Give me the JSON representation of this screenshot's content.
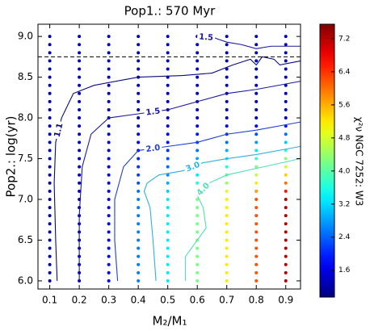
{
  "chart_data": {
    "type": "contour-scatter",
    "title": "Pop1.: 570 Myr",
    "x_label": "M₂/M₁",
    "y_label": "Pop2.: log(yr)",
    "colorbar_label": "χ²ν NGC 7252: W3",
    "xlim": [
      0.06,
      0.95
    ],
    "ylim": [
      5.9,
      9.15
    ],
    "clim": [
      0.95,
      7.55
    ],
    "xticks": [
      0.1,
      0.2,
      0.3,
      0.4,
      0.5,
      0.6,
      0.7,
      0.8,
      0.9
    ],
    "yticks": [
      {
        "value": 6,
        "label": "6.0"
      },
      6.5,
      {
        "value": 7,
        "label": "7.0"
      },
      7.5,
      {
        "value": 8,
        "label": "8.0"
      },
      8.5,
      {
        "value": 9,
        "label": "9.0"
      }
    ],
    "cticks": [
      1.6,
      2.4,
      3.2,
      {
        "value": 4,
        "label": "4.0"
      },
      4.8,
      5.6,
      6.4,
      7.2
    ],
    "colormap": "jet",
    "hline": 8.75,
    "x": [
      0.1,
      0.2,
      0.3,
      0.4,
      0.5,
      0.6,
      0.7,
      0.8,
      0.9
    ],
    "y": [
      6,
      6.1,
      6.2,
      6.3,
      6.4,
      6.5,
      6.6,
      6.7,
      6.8,
      6.9,
      7,
      7.1,
      7.2,
      7.3,
      7.4,
      7.5,
      7.6,
      7.7,
      7.8,
      7.9,
      8,
      8.1,
      8.2,
      8.3,
      8.4,
      8.5,
      8.6,
      8.7,
      8.8,
      8.9,
      9
    ],
    "z": [
      [
        1.2,
        1.3,
        1.8,
        2.6,
        3.3,
        4.2,
        5.2,
        6.2,
        7.2
      ],
      [
        1.2,
        1.3,
        1.8,
        2.6,
        3.3,
        4.2,
        5.2,
        6.2,
        7.2
      ],
      [
        1.2,
        1.3,
        1.8,
        2.6,
        3.3,
        4.2,
        5.2,
        6.2,
        7.2
      ],
      [
        1.2,
        1.3,
        1.8,
        2.6,
        3.3,
        4.2,
        5.2,
        6.2,
        7.2
      ],
      [
        1.2,
        1.3,
        1.8,
        2.6,
        3.3,
        4.2,
        5.2,
        6.2,
        7.2
      ],
      [
        1.2,
        1.3,
        1.8,
        2.6,
        3.3,
        4.2,
        5.2,
        6.2,
        7.2
      ],
      [
        1.2,
        1.3,
        1.8,
        2.6,
        3.3,
        4.2,
        5.2,
        6.2,
        7.2
      ],
      [
        1.2,
        1.3,
        1.8,
        2.6,
        3.3,
        4.2,
        5.2,
        6.2,
        7.2
      ],
      [
        1.2,
        1.3,
        1.8,
        2.6,
        3.3,
        4.2,
        5.2,
        6.2,
        7.2
      ],
      [
        1.2,
        1.3,
        1.8,
        2.6,
        3.3,
        4.2,
        5.2,
        6.2,
        7.2
      ],
      [
        1.2,
        1.3,
        1.8,
        2.6,
        3.3,
        4.2,
        5.2,
        6.2,
        7.2
      ],
      [
        1.2,
        1.3,
        1.8,
        2.5,
        3.1,
        3.9,
        4.8,
        5.7,
        6.6
      ],
      [
        1.2,
        1.3,
        1.7,
        2.3,
        2.9,
        3.6,
        4.4,
        5.2,
        6.0
      ],
      [
        1.2,
        1.3,
        1.7,
        2.2,
        2.7,
        3.3,
        4.0,
        4.7,
        5.4
      ],
      [
        1.2,
        1.3,
        1.6,
        2.1,
        2.5,
        3.0,
        3.6,
        4.2,
        4.8
      ],
      [
        1.3,
        1.3,
        1.6,
        2.0,
        2.3,
        2.8,
        3.3,
        3.8,
        4.3
      ],
      [
        1.3,
        1.3,
        1.5,
        1.8,
        2.1,
        2.5,
        2.9,
        3.3,
        3.7
      ],
      [
        1.3,
        1.3,
        1.5,
        1.7,
        1.9,
        2.2,
        2.5,
        2.8,
        3.1
      ],
      [
        1.3,
        1.3,
        1.4,
        1.6,
        1.7,
        1.9,
        2.1,
        2.3,
        2.5
      ],
      [
        1.3,
        1.3,
        1.4,
        1.4,
        1.5,
        1.6,
        1.7,
        1.8,
        1.9
      ],
      [
        1.2,
        1.3,
        1.3,
        1.3,
        1.3,
        1.3,
        1.3,
        1.3,
        1.3
      ],
      [
        1.2,
        1.3,
        1.3,
        1.3,
        1.3,
        1.3,
        1.3,
        1.3,
        1.3
      ],
      [
        1.2,
        1.3,
        1.3,
        1.3,
        1.3,
        1.3,
        1.3,
        1.3,
        1.3
      ],
      [
        1.2,
        1.3,
        1.3,
        1.3,
        1.3,
        1.3,
        1.3,
        1.3,
        1.3
      ],
      [
        1.2,
        1.3,
        1.3,
        1.3,
        1.3,
        1.3,
        1.3,
        1.3,
        1.3
      ],
      [
        1.2,
        1.3,
        1.3,
        1.3,
        1.3,
        1.3,
        1.3,
        1.3,
        1.3
      ],
      [
        1.2,
        1.3,
        1.3,
        1.3,
        1.3,
        1.3,
        1.3,
        1.3,
        1.3
      ],
      [
        1.2,
        1.3,
        1.3,
        1.3,
        1.3,
        1.3,
        1.3,
        1.3,
        1.3
      ],
      [
        1.2,
        1.3,
        1.3,
        1.3,
        1.3,
        1.3,
        1.3,
        1.3,
        1.3
      ],
      [
        1.2,
        1.3,
        1.3,
        1.3,
        1.3,
        1.3,
        1.3,
        1.3,
        1.3
      ],
      [
        1.2,
        1.3,
        1.3,
        1.3,
        1.3,
        1.3,
        1.3,
        1.3,
        1.3
      ]
    ],
    "contours": [
      {
        "level": 1.1,
        "label": "1.1",
        "color": "#0a0a80",
        "x": [
          0.125,
          0.12,
          0.115,
          0.12,
          0.14,
          0.18,
          0.25,
          0.4,
          0.55,
          0.65,
          0.72,
          0.78,
          0.8,
          0.82,
          0.86,
          0.88,
          0.95
        ],
        "y": [
          6.0,
          6.5,
          7.2,
          7.7,
          8.0,
          8.3,
          8.4,
          8.5,
          8.52,
          8.55,
          8.65,
          8.72,
          8.65,
          8.75,
          8.72,
          8.65,
          8.7
        ]
      },
      {
        "level": 1.5,
        "label": "1.5",
        "color": "#1a1aa0",
        "x": [
          0.6,
          0.66,
          0.7,
          0.75,
          0.8,
          0.85,
          0.95
        ],
        "y": [
          9.0,
          8.98,
          8.93,
          8.9,
          8.85,
          8.88,
          8.88
        ]
      },
      {
        "level": 1.5,
        "label": "1.5",
        "color": "#1a1aa0",
        "x": [
          0.2,
          0.2,
          0.21,
          0.24,
          0.3,
          0.4,
          0.5,
          0.6,
          0.7,
          0.8,
          0.95
        ],
        "y": [
          6.0,
          6.8,
          7.4,
          7.8,
          8.0,
          8.05,
          8.1,
          8.2,
          8.3,
          8.35,
          8.45
        ]
      },
      {
        "level": 2,
        "label": "2.0",
        "color": "#2040d0",
        "x": [
          0.33,
          0.32,
          0.32,
          0.35,
          0.4,
          0.5,
          0.6,
          0.7,
          0.8,
          0.95
        ],
        "y": [
          6.0,
          6.5,
          7.0,
          7.4,
          7.6,
          7.65,
          7.7,
          7.8,
          7.85,
          7.95
        ]
      },
      {
        "level": 3,
        "label": "3.0",
        "color": "#30b0e0",
        "x": [
          0.46,
          0.45,
          0.44,
          0.42,
          0.43,
          0.47,
          0.55,
          0.62,
          0.7,
          0.8,
          0.95
        ],
        "y": [
          6.0,
          6.5,
          6.9,
          7.1,
          7.2,
          7.3,
          7.35,
          7.45,
          7.5,
          7.55,
          7.65
        ]
      },
      {
        "level": 4,
        "label": "4.0",
        "color": "#50e0b0",
        "x": [
          0.56,
          0.56,
          0.6,
          0.63,
          0.62,
          0.6,
          0.64,
          0.7,
          0.8,
          0.95
        ],
        "y": [
          6.0,
          6.3,
          6.5,
          6.65,
          6.9,
          7.05,
          7.2,
          7.3,
          7.38,
          7.5
        ]
      }
    ]
  }
}
